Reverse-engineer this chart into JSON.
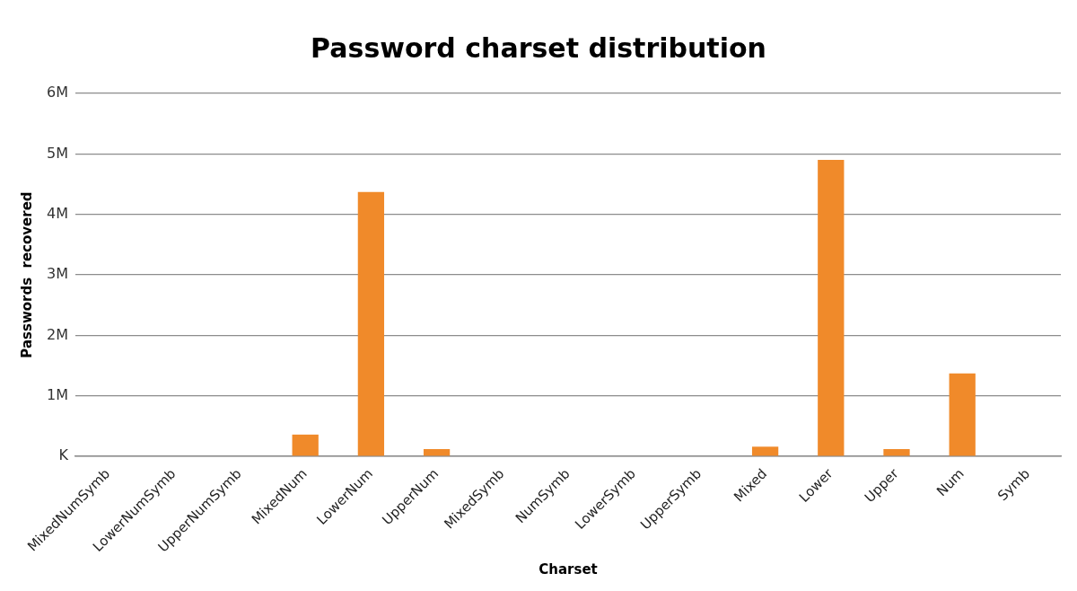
{
  "chart_data": {
    "type": "bar",
    "title": "Password charset distribution",
    "xlabel": "Charset",
    "ylabel": "Passwords  recovered",
    "categories": [
      "MixedNumSymb",
      "LowerNumSymb",
      "UpperNumSymb",
      "MixedNum",
      "LowerNum",
      "UpperNum",
      "MixedSymb",
      "NumSymb",
      "LowerSymb",
      "UpperSymb",
      "Mixed",
      "Lower",
      "Upper",
      "Num",
      "Symb"
    ],
    "values": [
      0,
      0,
      0,
      360000,
      4370000,
      120000,
      0,
      0,
      0,
      0,
      160000,
      4900000,
      120000,
      1370000,
      0
    ],
    "color": "#f08a2a",
    "ylim": [
      0,
      6000000
    ],
    "yticks": [
      {
        "value": 0,
        "label": "K"
      },
      {
        "value": 1000000,
        "label": "1M"
      },
      {
        "value": 2000000,
        "label": "2M"
      },
      {
        "value": 3000000,
        "label": "3M"
      },
      {
        "value": 4000000,
        "label": "4M"
      },
      {
        "value": 5000000,
        "label": "5M"
      },
      {
        "value": 6000000,
        "label": "6M"
      }
    ],
    "grid": "y",
    "legend": false
  }
}
